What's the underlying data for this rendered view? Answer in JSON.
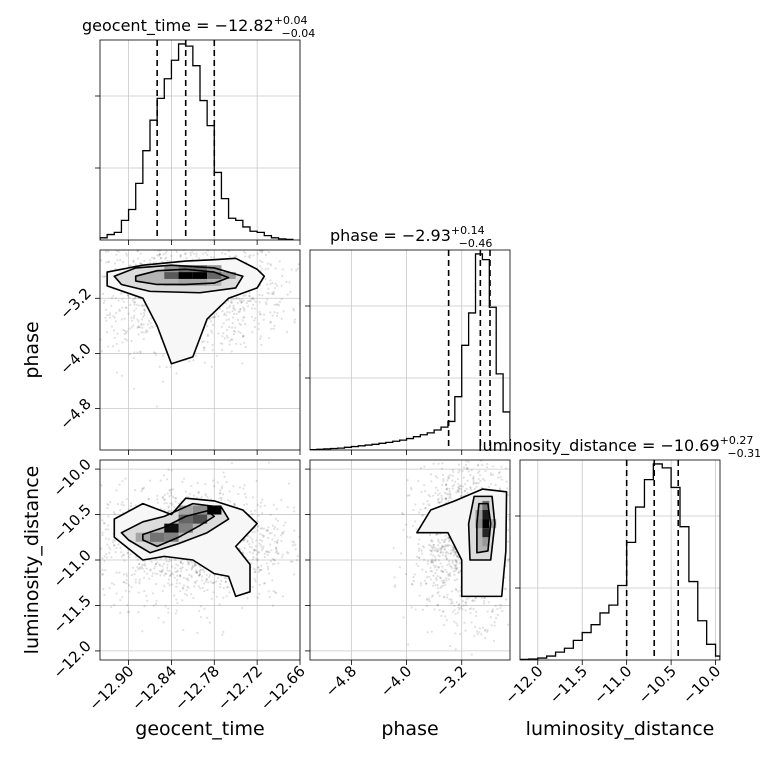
{
  "chart_data": {
    "type": "corner",
    "parameters": [
      "geocent_time",
      "phase",
      "luminosity_distance"
    ],
    "panels": [
      {
        "kind": "histogram",
        "parameter": "geocent_time",
        "title": {
          "prefix": "geocent_time = −12.82",
          "sup": "+0.04",
          "sub": "−0.04"
        },
        "xlim": [
          -12.94,
          -12.66
        ],
        "quantiles": [
          -12.86,
          -12.82,
          -12.78
        ],
        "bin_edges": [
          -12.94,
          -12.93,
          -12.92,
          -12.91,
          -12.9,
          -12.89,
          -12.88,
          -12.87,
          -12.86,
          -12.85,
          -12.84,
          -12.83,
          -12.82,
          -12.81,
          -12.8,
          -12.79,
          -12.78,
          -12.77,
          -12.76,
          -12.75,
          -12.74,
          -12.73,
          -12.72,
          -12.71,
          -12.7,
          -12.69,
          -12.68,
          -12.67
        ],
        "values": [
          2,
          5,
          7,
          18,
          28,
          52,
          82,
          110,
          130,
          148,
          165,
          180,
          178,
          160,
          128,
          105,
          62,
          38,
          20,
          18,
          12,
          8,
          7,
          4,
          2,
          1,
          0.5
        ]
      },
      {
        "kind": "histogram",
        "parameter": "phase",
        "title": {
          "prefix": "phase = −2.93",
          "sup": "+0.14",
          "sub": "−0.46"
        },
        "xlim": [
          -5.4,
          -2.5
        ],
        "quantiles": [
          -3.39,
          -2.93,
          -2.79
        ],
        "bin_edges": [
          -5.4,
          -5.3,
          -5.2,
          -5.1,
          -5.0,
          -4.9,
          -4.8,
          -4.7,
          -4.6,
          -4.5,
          -4.4,
          -4.3,
          -4.2,
          -4.1,
          -4.0,
          -3.9,
          -3.8,
          -3.7,
          -3.6,
          -3.5,
          -3.4,
          -3.3,
          -3.2,
          -3.1,
          -3.0,
          -2.9,
          -2.8,
          -2.7,
          -2.6,
          -2.5
        ],
        "values": [
          0.2,
          0.4,
          0.6,
          0.8,
          1.0,
          1.4,
          1.8,
          2.2,
          2.6,
          3.0,
          3.5,
          4.0,
          4.6,
          5.2,
          6.0,
          7.0,
          8.0,
          9.0,
          10.5,
          12.0,
          15.0,
          28.0,
          55.0,
          72.0,
          103.0,
          100.0,
          75.0,
          40.0,
          20.0
        ]
      },
      {
        "kind": "histogram",
        "parameter": "luminosity_distance",
        "title": {
          "prefix": "luminosity_distance = −10.69",
          "sup": "+0.27",
          "sub": "−0.31"
        },
        "xlim": [
          -12.2,
          -9.95
        ],
        "quantiles": [
          -11.0,
          -10.69,
          -10.42
        ],
        "bin_edges": [
          -12.2,
          -12.1,
          -12.0,
          -11.9,
          -11.8,
          -11.7,
          -11.6,
          -11.5,
          -11.4,
          -11.3,
          -11.2,
          -11.1,
          -11.0,
          -10.9,
          -10.8,
          -10.7,
          -10.6,
          -10.5,
          -10.4,
          -10.3,
          -10.2,
          -10.1,
          -10.0,
          -9.95
        ],
        "values": [
          0.3,
          0.5,
          1.0,
          2.0,
          4.0,
          6.0,
          10.0,
          14.0,
          18.0,
          24.0,
          28.0,
          38.0,
          60.0,
          78.0,
          92.0,
          100.0,
          98.0,
          88.0,
          68.0,
          40.0,
          20.0,
          8.0,
          2.0
        ]
      },
      {
        "kind": "2d",
        "x": "geocent_time",
        "y": "phase",
        "xlim": [
          -12.94,
          -12.66
        ],
        "ylim": [
          -5.4,
          -2.5
        ],
        "cells": [
          {
            "x": -12.85,
            "y": -2.92,
            "w": 0.02,
            "h": 0.1,
            "v": 0.65
          },
          {
            "x": -12.83,
            "y": -2.92,
            "w": 0.02,
            "h": 0.1,
            "v": 1.0
          },
          {
            "x": -12.81,
            "y": -2.92,
            "w": 0.02,
            "h": 0.1,
            "v": 1.0
          },
          {
            "x": -12.79,
            "y": -2.92,
            "w": 0.02,
            "h": 0.1,
            "v": 0.6
          },
          {
            "x": -12.77,
            "y": -2.92,
            "w": 0.02,
            "h": 0.1,
            "v": 0.4
          },
          {
            "x": -12.85,
            "y": -2.82,
            "w": 0.02,
            "h": 0.1,
            "v": 0.4
          },
          {
            "x": -12.83,
            "y": -2.82,
            "w": 0.02,
            "h": 0.1,
            "v": 0.55
          },
          {
            "x": -12.81,
            "y": -2.82,
            "w": 0.02,
            "h": 0.1,
            "v": 0.55
          },
          {
            "x": -12.79,
            "y": -2.82,
            "w": 0.02,
            "h": 0.1,
            "v": 0.4
          },
          {
            "x": -12.85,
            "y": -3.02,
            "w": 0.02,
            "h": 0.1,
            "v": 0.3
          },
          {
            "x": -12.83,
            "y": -3.02,
            "w": 0.02,
            "h": 0.1,
            "v": 0.35
          },
          {
            "x": -12.81,
            "y": -3.02,
            "w": 0.02,
            "h": 0.1,
            "v": 0.35
          },
          {
            "x": -12.79,
            "y": -3.02,
            "w": 0.02,
            "h": 0.1,
            "v": 0.3
          }
        ],
        "contours": [
          [
            [
              -12.89,
              -2.95
            ],
            [
              -12.86,
              -3.0
            ],
            [
              -12.82,
              -3.0
            ],
            [
              -12.78,
              -2.98
            ],
            [
              -12.76,
              -2.9
            ],
            [
              -12.78,
              -2.82
            ],
            [
              -12.82,
              -2.78
            ],
            [
              -12.86,
              -2.8
            ],
            [
              -12.89,
              -2.88
            ],
            [
              -12.89,
              -2.95
            ]
          ],
          [
            [
              -12.91,
              -3.0
            ],
            [
              -12.87,
              -3.1
            ],
            [
              -12.8,
              -3.12
            ],
            [
              -12.75,
              -3.05
            ],
            [
              -12.74,
              -2.88
            ],
            [
              -12.78,
              -2.76
            ],
            [
              -12.84,
              -2.72
            ],
            [
              -12.89,
              -2.76
            ],
            [
              -12.92,
              -2.88
            ],
            [
              -12.91,
              -3.0
            ]
          ],
          [
            [
              -12.93,
              -3.02
            ],
            [
              -12.88,
              -3.2
            ],
            [
              -12.86,
              -3.6
            ],
            [
              -12.84,
              -4.15
            ],
            [
              -12.81,
              -4.05
            ],
            [
              -12.79,
              -3.5
            ],
            [
              -12.76,
              -3.2
            ],
            [
              -12.72,
              -3.05
            ],
            [
              -12.71,
              -2.88
            ],
            [
              -12.72,
              -2.78
            ],
            [
              -12.75,
              -2.62
            ],
            [
              -12.78,
              -2.64
            ],
            [
              -12.82,
              -2.66
            ],
            [
              -12.88,
              -2.72
            ],
            [
              -12.93,
              -2.82
            ],
            [
              -12.93,
              -3.02
            ]
          ]
        ]
      },
      {
        "kind": "2d",
        "x": "geocent_time",
        "y": "luminosity_distance",
        "xlim": [
          -12.94,
          -12.66
        ],
        "ylim": [
          -12.1,
          -9.9
        ],
        "cells": [
          {
            "x": -12.87,
            "y": -10.8,
            "w": 0.02,
            "h": 0.1,
            "v": 0.55
          },
          {
            "x": -12.85,
            "y": -10.7,
            "w": 0.02,
            "h": 0.1,
            "v": 0.95
          },
          {
            "x": -12.83,
            "y": -10.6,
            "w": 0.02,
            "h": 0.1,
            "v": 0.6
          },
          {
            "x": -12.81,
            "y": -10.6,
            "w": 0.02,
            "h": 0.1,
            "v": 0.7
          },
          {
            "x": -12.79,
            "y": -10.5,
            "w": 0.02,
            "h": 0.1,
            "v": 1.0
          },
          {
            "x": -12.85,
            "y": -10.8,
            "w": 0.02,
            "h": 0.1,
            "v": 0.5
          },
          {
            "x": -12.83,
            "y": -10.7,
            "w": 0.02,
            "h": 0.1,
            "v": 0.5
          },
          {
            "x": -12.81,
            "y": -10.5,
            "w": 0.02,
            "h": 0.1,
            "v": 0.45
          },
          {
            "x": -12.89,
            "y": -10.8,
            "w": 0.02,
            "h": 0.1,
            "v": 0.35
          },
          {
            "x": -12.83,
            "y": -10.5,
            "w": 0.02,
            "h": 0.1,
            "v": 0.35
          }
        ],
        "contours": [
          [
            [
              -12.88,
              -10.78
            ],
            [
              -12.86,
              -10.85
            ],
            [
              -12.83,
              -10.75
            ],
            [
              -12.8,
              -10.62
            ],
            [
              -12.78,
              -10.52
            ],
            [
              -12.79,
              -10.46
            ],
            [
              -12.82,
              -10.52
            ],
            [
              -12.85,
              -10.64
            ],
            [
              -12.88,
              -10.72
            ],
            [
              -12.88,
              -10.78
            ]
          ],
          [
            [
              -12.9,
              -10.78
            ],
            [
              -12.87,
              -10.92
            ],
            [
              -12.83,
              -10.82
            ],
            [
              -12.79,
              -10.7
            ],
            [
              -12.76,
              -10.55
            ],
            [
              -12.77,
              -10.42
            ],
            [
              -12.81,
              -10.38
            ],
            [
              -12.85,
              -10.52
            ],
            [
              -12.88,
              -10.58
            ],
            [
              -12.91,
              -10.7
            ],
            [
              -12.9,
              -10.78
            ]
          ],
          [
            [
              -12.92,
              -10.75
            ],
            [
              -12.88,
              -11.0
            ],
            [
              -12.85,
              -10.96
            ],
            [
              -12.81,
              -11.0
            ],
            [
              -12.78,
              -11.15
            ],
            [
              -12.76,
              -11.18
            ],
            [
              -12.75,
              -11.4
            ],
            [
              -12.73,
              -11.35
            ],
            [
              -12.73,
              -11.05
            ],
            [
              -12.75,
              -10.85
            ],
            [
              -12.72,
              -10.6
            ],
            [
              -12.74,
              -10.45
            ],
            [
              -12.78,
              -10.35
            ],
            [
              -12.82,
              -10.32
            ],
            [
              -12.84,
              -10.5
            ],
            [
              -12.88,
              -10.38
            ],
            [
              -12.92,
              -10.55
            ],
            [
              -12.92,
              -10.75
            ]
          ]
        ]
      },
      {
        "kind": "2d",
        "x": "phase",
        "y": "luminosity_distance",
        "xlim": [
          -5.4,
          -2.5
        ],
        "ylim": [
          -12.1,
          -9.9
        ],
        "cells": [
          {
            "x": -2.9,
            "y": -10.55,
            "w": 0.1,
            "h": 0.1,
            "v": 0.9
          },
          {
            "x": -2.9,
            "y": -10.65,
            "w": 0.1,
            "h": 0.1,
            "v": 1.0
          },
          {
            "x": -2.9,
            "y": -10.75,
            "w": 0.1,
            "h": 0.1,
            "v": 0.85
          },
          {
            "x": -2.9,
            "y": -10.45,
            "w": 0.1,
            "h": 0.1,
            "v": 0.55
          },
          {
            "x": -3.0,
            "y": -10.55,
            "w": 0.1,
            "h": 0.1,
            "v": 0.4
          },
          {
            "x": -3.0,
            "y": -10.65,
            "w": 0.1,
            "h": 0.1,
            "v": 0.45
          },
          {
            "x": -2.8,
            "y": -10.65,
            "w": 0.1,
            "h": 0.1,
            "v": 0.35
          },
          {
            "x": -2.9,
            "y": -10.85,
            "w": 0.1,
            "h": 0.1,
            "v": 0.4
          }
        ],
        "contours": [
          [
            [
              -2.98,
              -10.92
            ],
            [
              -2.82,
              -10.9
            ],
            [
              -2.78,
              -10.6
            ],
            [
              -2.82,
              -10.38
            ],
            [
              -2.95,
              -10.38
            ],
            [
              -2.98,
              -10.6
            ],
            [
              -2.98,
              -10.92
            ]
          ],
          [
            [
              -3.08,
              -11.0
            ],
            [
              -2.78,
              -11.0
            ],
            [
              -2.72,
              -10.6
            ],
            [
              -2.76,
              -10.3
            ],
            [
              -3.02,
              -10.3
            ],
            [
              -3.1,
              -10.6
            ],
            [
              -3.08,
              -11.0
            ]
          ],
          [
            [
              -3.2,
              -11.4
            ],
            [
              -2.62,
              -11.4
            ],
            [
              -2.56,
              -10.9
            ],
            [
              -2.55,
              -10.25
            ],
            [
              -2.9,
              -10.22
            ],
            [
              -3.3,
              -10.35
            ],
            [
              -3.65,
              -10.45
            ],
            [
              -3.85,
              -10.7
            ],
            [
              -3.4,
              -10.7
            ],
            [
              -3.2,
              -11.0
            ],
            [
              -3.2,
              -11.4
            ]
          ]
        ]
      }
    ],
    "axes": {
      "geocent_time": {
        "label": "geocent_time",
        "ticks": [
          -12.9,
          -12.84,
          -12.78,
          -12.72,
          -12.66
        ],
        "tick_labels": [
          "−12.90",
          "−12.84",
          "−12.78",
          "−12.72",
          "−12.66"
        ]
      },
      "phase": {
        "label": "phase",
        "ticks": [
          -4.8,
          -4.0,
          -3.2
        ],
        "tick_labels": [
          "−4.8",
          "−4.0",
          "−3.2"
        ]
      },
      "luminosity_distance": {
        "label": "luminosity_distance",
        "ticks": [
          -12.0,
          -11.5,
          -11.0,
          -10.5,
          -10.0
        ],
        "tick_labels": [
          "−12.0",
          "−11.5",
          "−11.0",
          "−10.5",
          "−10.0"
        ]
      }
    },
    "grid": true
  }
}
